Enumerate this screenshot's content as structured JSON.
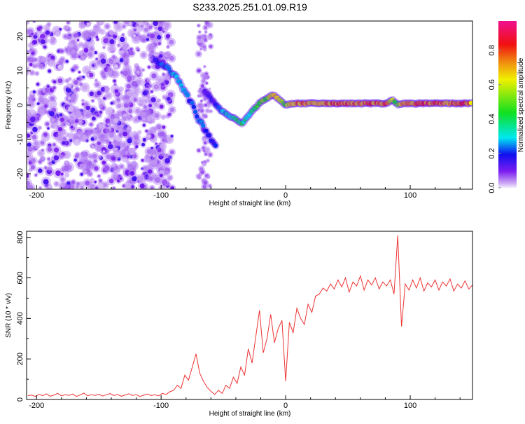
{
  "title": "S233.2025.251.01.09.R19",
  "chart_data": [
    {
      "type": "heatmap",
      "title": "S233.2025.251.01.09.R19",
      "xlabel": "Height of straight line (km)",
      "ylabel": "Frequency (Hz)",
      "xlim": [
        -208,
        150
      ],
      "ylim": [
        -24.5,
        24.5
      ],
      "xticks": [
        -200,
        -100,
        0,
        100
      ],
      "yticks": [
        20,
        10,
        0,
        -10,
        -20
      ],
      "colorbar": {
        "label": "Normalized spectral amplitude",
        "range": [
          0,
          1
        ],
        "ticks": [
          "0.0",
          "0.2",
          "0.4",
          "0.6",
          "0.8"
        ]
      },
      "noise_region_km": [
        -208,
        -95
      ],
      "noise_band_km": [
        -70,
        -60
      ],
      "ridge": [
        {
          "x": -105,
          "f": 13,
          "a": 0.2
        },
        {
          "x": -100,
          "f": 12,
          "a": 0.25
        },
        {
          "x": -95,
          "f": 11,
          "a": 0.25
        },
        {
          "x": -90,
          "f": 9,
          "a": 0.3
        },
        {
          "x": -85,
          "f": 6.5,
          "a": 0.3
        },
        {
          "x": -80,
          "f": 3.5,
          "a": 0.28
        },
        {
          "x": -75,
          "f": 0,
          "a": 0.25
        },
        {
          "x": -70,
          "f": -4,
          "a": 0.28
        },
        {
          "x": -65,
          "f": -7,
          "a": 0.22
        },
        {
          "x": -60,
          "f": -10,
          "a": 0.2
        },
        {
          "x": -55,
          "f": -12,
          "a": 0.2
        }
      ],
      "ridge2": [
        {
          "x": -65,
          "f": 4,
          "a": 0.15
        },
        {
          "x": -58,
          "f": 1,
          "a": 0.18
        },
        {
          "x": -52,
          "f": -1.5,
          "a": 0.3
        },
        {
          "x": -46,
          "f": -3,
          "a": 0.35
        },
        {
          "x": -40,
          "f": -4,
          "a": 0.45
        },
        {
          "x": -35,
          "f": -5.5,
          "a": 0.45
        },
        {
          "x": -30,
          "f": -3,
          "a": 0.35
        },
        {
          "x": -25,
          "f": -1,
          "a": 0.45
        },
        {
          "x": -20,
          "f": 1,
          "a": 0.5
        },
        {
          "x": -15,
          "f": 2,
          "a": 0.6
        },
        {
          "x": -10,
          "f": 3,
          "a": 0.8
        },
        {
          "x": -5,
          "f": 1.5,
          "a": 0.65
        },
        {
          "x": 0,
          "f": 0,
          "a": 0.55
        },
        {
          "x": 5,
          "f": 0.5,
          "a": 0.8
        },
        {
          "x": 10,
          "f": 0.5,
          "a": 0.85
        },
        {
          "x": 20,
          "f": 0.5,
          "a": 0.8
        },
        {
          "x": 40,
          "f": 0.5,
          "a": 0.85
        },
        {
          "x": 60,
          "f": 0.5,
          "a": 0.85
        },
        {
          "x": 80,
          "f": 0.5,
          "a": 0.85
        },
        {
          "x": 86,
          "f": 1.5,
          "a": 0.6
        },
        {
          "x": 90,
          "f": 0,
          "a": 0.5
        },
        {
          "x": 95,
          "f": 0.5,
          "a": 0.85
        },
        {
          "x": 120,
          "f": 0.5,
          "a": 0.85
        },
        {
          "x": 150,
          "f": 0.5,
          "a": 0.85
        }
      ]
    },
    {
      "type": "line",
      "xlabel": "Height of straight line (km)",
      "ylabel": "SNR (10 * v/v)",
      "xlim": [
        -208,
        150
      ],
      "ylim": [
        0,
        830
      ],
      "xticks": [
        -200,
        -100,
        0,
        100
      ],
      "yticks": [
        0,
        200,
        400,
        600,
        800
      ],
      "color": "#ee3333",
      "x_start": -207,
      "x_step": 3,
      "values": [
        18,
        22,
        15,
        25,
        19,
        28,
        16,
        22,
        30,
        18,
        24,
        20,
        27,
        15,
        22,
        31,
        18,
        24,
        20,
        26,
        17,
        23,
        29,
        19,
        25,
        16,
        22,
        28,
        20,
        24,
        15,
        21,
        27,
        19,
        23,
        18,
        30,
        25,
        38,
        45,
        70,
        55,
        120,
        95,
        160,
        225,
        130,
        90,
        60,
        40,
        25,
        45,
        30,
        70,
        55,
        110,
        80,
        160,
        120,
        250,
        180,
        310,
        440,
        230,
        300,
        420,
        280,
        350,
        390,
        90,
        380,
        330,
        450,
        400,
        370,
        470,
        430,
        510,
        520,
        550,
        535,
        570,
        545,
        590,
        555,
        600,
        530,
        580,
        560,
        610,
        540,
        590,
        565,
        600,
        545,
        580,
        560,
        590,
        520,
        810,
        360,
        570,
        540,
        590,
        550,
        600,
        535,
        575,
        555,
        590,
        540,
        580,
        560,
        595,
        535,
        570,
        550,
        585,
        545,
        565
      ]
    }
  ]
}
